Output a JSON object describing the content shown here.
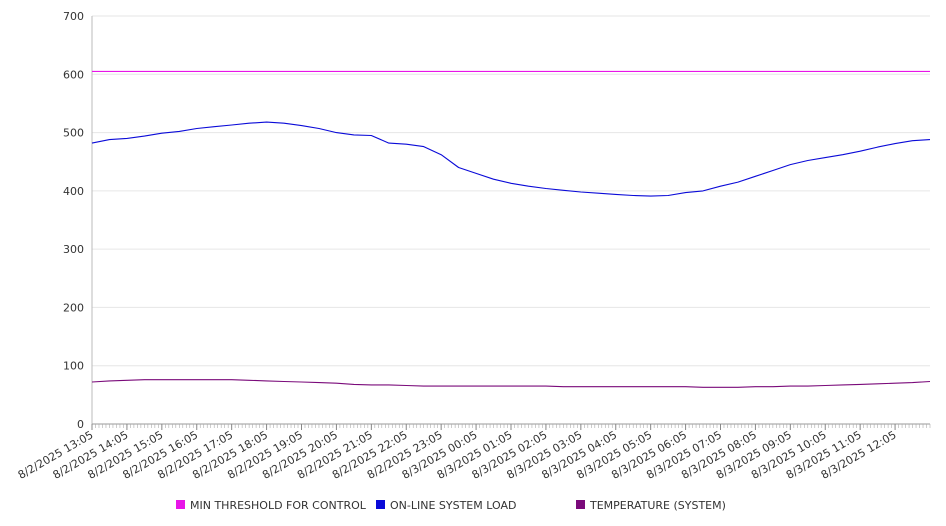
{
  "chart_data": {
    "type": "line",
    "title": "",
    "xlabel": "",
    "ylabel": "",
    "ylim": [
      0,
      700
    ],
    "yticks": [
      0,
      100,
      200,
      300,
      400,
      500,
      600,
      700
    ],
    "grid": true,
    "legend_position": "bottom",
    "x_tick_labels": [
      "8/2/2025 13:05",
      "8/2/2025 14:05",
      "8/2/2025 15:05",
      "8/2/2025 16:05",
      "8/2/2025 17:05",
      "8/2/2025 18:05",
      "8/2/2025 19:05",
      "8/2/2025 20:05",
      "8/2/2025 21:05",
      "8/2/2025 22:05",
      "8/2/2025 23:05",
      "8/3/2025 00:05",
      "8/3/2025 01:05",
      "8/3/2025 02:05",
      "8/3/2025 03:05",
      "8/3/2025 04:05",
      "8/3/2025 05:05",
      "8/3/2025 06:05",
      "8/3/2025 07:05",
      "8/3/2025 08:05",
      "8/3/2025 09:05",
      "8/3/2025 10:05",
      "8/3/2025 11:05",
      "8/3/2025 12:05"
    ],
    "x_start": "8/2/2025 13:05",
    "x_end": "8/3/2025 13:05",
    "x": [
      "8/2/2025 13:05",
      "8/2/2025 13:35",
      "8/2/2025 14:05",
      "8/2/2025 14:35",
      "8/2/2025 15:05",
      "8/2/2025 15:35",
      "8/2/2025 16:05",
      "8/2/2025 16:35",
      "8/2/2025 17:05",
      "8/2/2025 17:35",
      "8/2/2025 18:05",
      "8/2/2025 18:35",
      "8/2/2025 19:05",
      "8/2/2025 19:35",
      "8/2/2025 20:05",
      "8/2/2025 20:35",
      "8/2/2025 21:05",
      "8/2/2025 21:35",
      "8/2/2025 22:05",
      "8/2/2025 22:35",
      "8/2/2025 23:05",
      "8/2/2025 23:35",
      "8/3/2025 00:05",
      "8/3/2025 00:35",
      "8/3/2025 01:05",
      "8/3/2025 01:35",
      "8/3/2025 02:05",
      "8/3/2025 02:35",
      "8/3/2025 03:05",
      "8/3/2025 03:35",
      "8/3/2025 04:05",
      "8/3/2025 04:35",
      "8/3/2025 05:05",
      "8/3/2025 05:35",
      "8/3/2025 06:05",
      "8/3/2025 06:35",
      "8/3/2025 07:05",
      "8/3/2025 07:35",
      "8/3/2025 08:05",
      "8/3/2025 08:35",
      "8/3/2025 09:05",
      "8/3/2025 09:35",
      "8/3/2025 10:05",
      "8/3/2025 10:35",
      "8/3/2025 11:05",
      "8/3/2025 11:35",
      "8/3/2025 12:05",
      "8/3/2025 12:35",
      "8/3/2025 13:05"
    ],
    "series": [
      {
        "name": "MIN THRESHOLD FOR CONTROL",
        "color": "#e815e8",
        "values": [
          605,
          605,
          605,
          605,
          605,
          605,
          605,
          605,
          605,
          605,
          605,
          605,
          605,
          605,
          605,
          605,
          605,
          605,
          605,
          605,
          605,
          605,
          605,
          605,
          605,
          605,
          605,
          605,
          605,
          605,
          605,
          605,
          605,
          605,
          605,
          605,
          605,
          605,
          605,
          605,
          605,
          605,
          605,
          605,
          605,
          605,
          605,
          605,
          605
        ]
      },
      {
        "name": "ON-LINE SYSTEM LOAD",
        "color": "#0a0ad8",
        "values": [
          482,
          488,
          490,
          494,
          499,
          502,
          507,
          510,
          513,
          516,
          518,
          516,
          512,
          507,
          500,
          496,
          495,
          482,
          480,
          476,
          462,
          440,
          430,
          420,
          413,
          408,
          404,
          401,
          398,
          396,
          394,
          392,
          391,
          392,
          397,
          400,
          408,
          415,
          425,
          435,
          445,
          452,
          457,
          462,
          468,
          475,
          481,
          486,
          488
        ]
      },
      {
        "name": "TEMPERATURE (SYSTEM)",
        "color": "#7a0a7a",
        "values": [
          72,
          74,
          75,
          76,
          76,
          76,
          76,
          76,
          76,
          75,
          74,
          73,
          72,
          71,
          70,
          68,
          67,
          67,
          66,
          65,
          65,
          65,
          65,
          65,
          65,
          65,
          65,
          64,
          64,
          64,
          64,
          64,
          64,
          64,
          64,
          63,
          63,
          63,
          64,
          64,
          65,
          65,
          66,
          67,
          68,
          69,
          70,
          71,
          73
        ]
      }
    ]
  }
}
